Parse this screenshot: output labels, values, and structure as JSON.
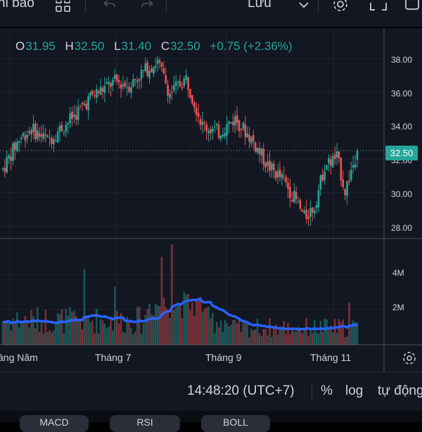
{
  "toolbar": {
    "indicators_label": "hỉ báo",
    "save_label": "Lưu"
  },
  "legend": {
    "open_key": "O",
    "open": "31.95",
    "high_key": "H",
    "high": "32.50",
    "low_key": "L",
    "low": "31.40",
    "close_key": "C",
    "close": "32.50",
    "change": "+0.75 (+2.36%)"
  },
  "colors": {
    "up": "#26a69a",
    "down": "#ef5350",
    "ma": "#2962ff",
    "background": "#131722"
  },
  "icons": [
    "layout-grid-icon",
    "undo-icon",
    "redo-icon",
    "chevron-down-icon",
    "gear-icon",
    "fullscreen-icon",
    "camera-icon",
    "settings-gear-icon"
  ],
  "chart_data": {
    "type": "candlestick",
    "price_axis_labels": [
      "38.00",
      "36.00",
      "34.00",
      "32.00",
      "30.00",
      "28.00"
    ],
    "price_axis_range": [
      27.3,
      39.8
    ],
    "last_price_label": "32.50",
    "last_price": 32.5,
    "volume_axis_labels": [
      "4M",
      "2M"
    ],
    "volume_axis_range": [
      0,
      6.0
    ],
    "time_axis_labels": [
      "áng Năm",
      "Tháng 7",
      "Tháng 9",
      "Tháng 11"
    ],
    "grid": true
  },
  "status": {
    "time": "14:48:20 (UTC+7)",
    "percent": "%",
    "log": "log",
    "auto": "tự động"
  },
  "tabs": [
    "MACD",
    "RSI",
    "BOLL"
  ]
}
